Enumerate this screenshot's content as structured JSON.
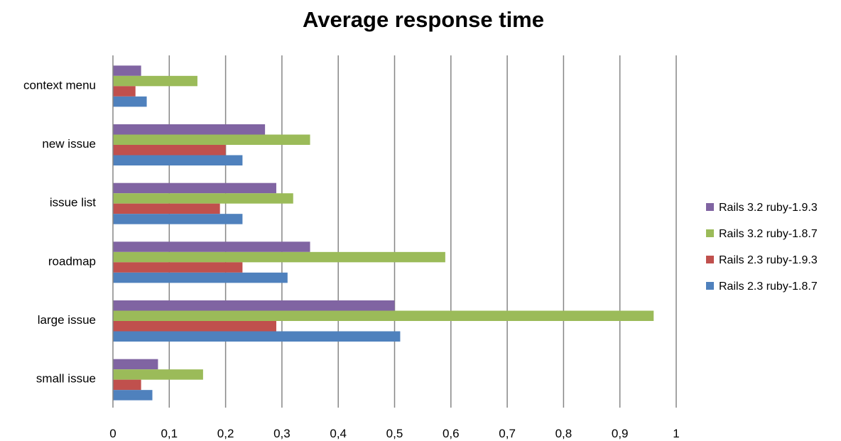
{
  "chart_data": {
    "type": "bar",
    "orientation": "horizontal",
    "title": "Average response time",
    "xlabel": "",
    "ylabel": "",
    "categories": [
      "context menu",
      "new issue",
      "issue list",
      "roadmap",
      "large issue",
      "small issue"
    ],
    "x_ticks": [
      "0",
      "0,1",
      "0,2",
      "0,3",
      "0,4",
      "0,5",
      "0,6",
      "0,7",
      "0,8",
      "0,9",
      "1"
    ],
    "xlim": [
      0,
      1
    ],
    "grid": "vertical",
    "legend_position": "right",
    "series": [
      {
        "name": "Rails 3.2 ruby-1.9.3",
        "color": "#8064A2",
        "values": [
          0.05,
          0.27,
          0.29,
          0.35,
          0.5,
          0.08
        ]
      },
      {
        "name": "Rails 3.2 ruby-1.8.7",
        "color": "#9BBB59",
        "values": [
          0.15,
          0.35,
          0.32,
          0.59,
          0.96,
          0.16
        ]
      },
      {
        "name": "Rails 2.3 ruby-1.9.3",
        "color": "#C0504D",
        "values": [
          0.04,
          0.2,
          0.19,
          0.23,
          0.29,
          0.05
        ]
      },
      {
        "name": "Rails 2.3 ruby-1.8.7",
        "color": "#4F81BD",
        "values": [
          0.06,
          0.23,
          0.23,
          0.31,
          0.51,
          0.07
        ]
      }
    ]
  }
}
